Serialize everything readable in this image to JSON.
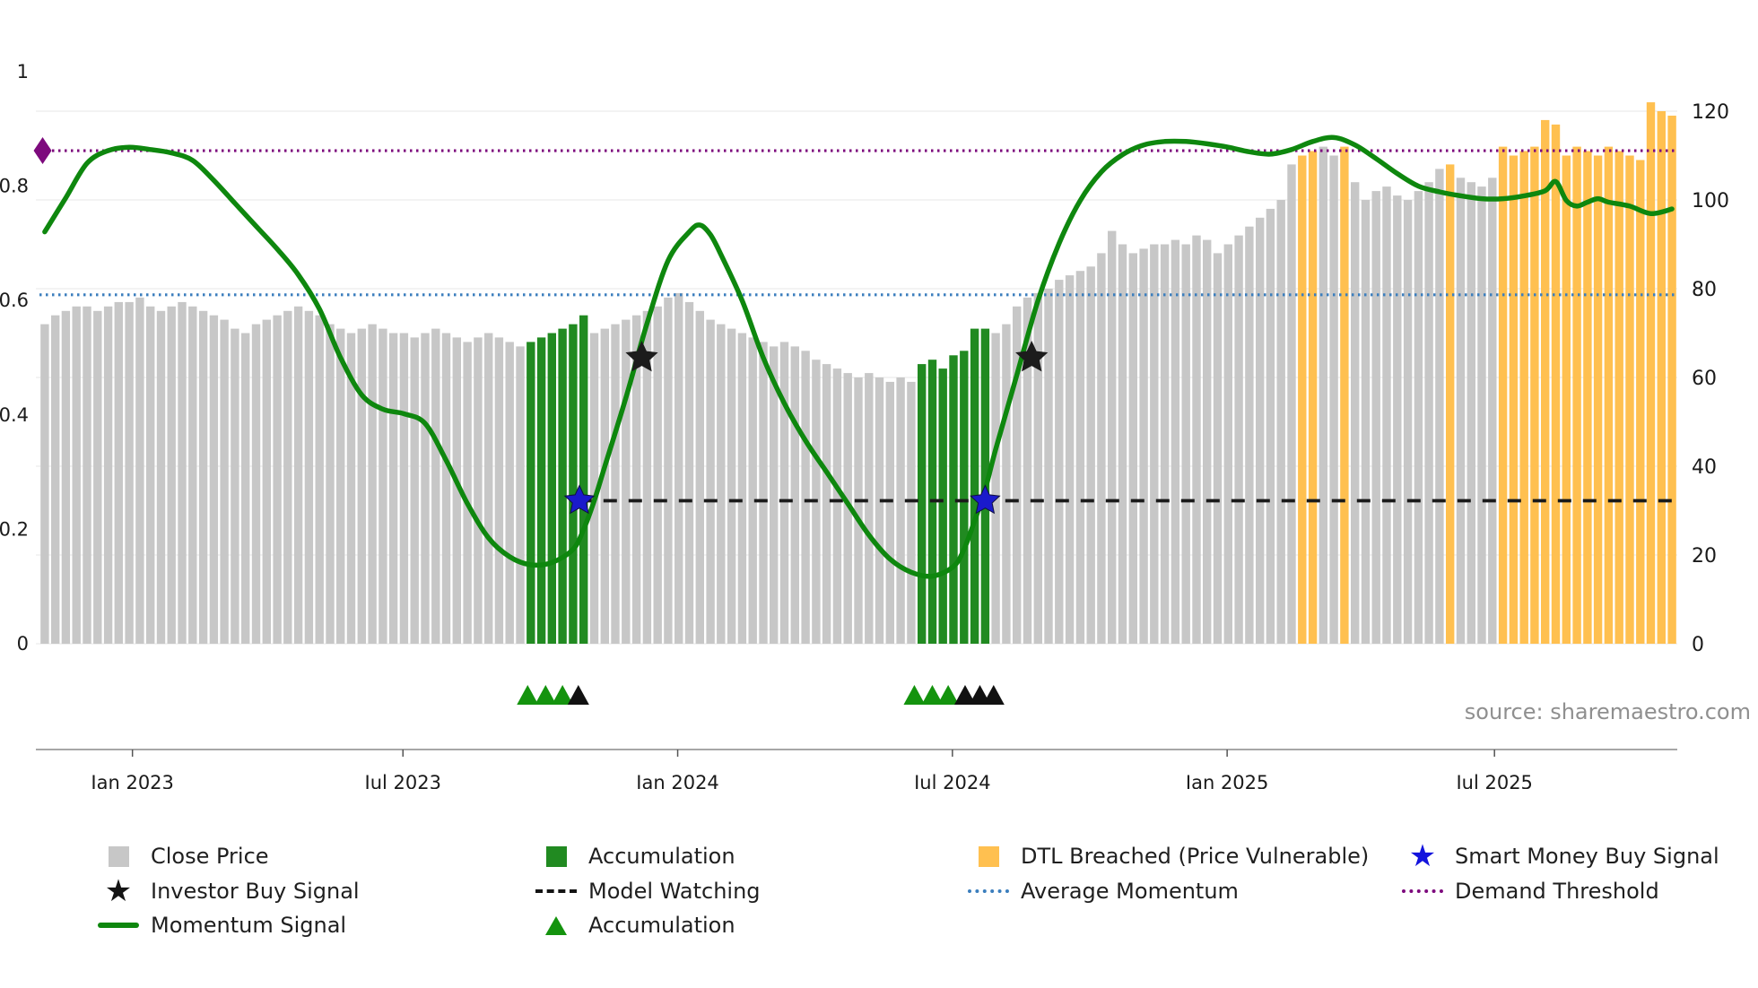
{
  "chart": {
    "source": "source: sharemaestro.com"
  },
  "chart_data": {
    "type": "bar",
    "description": "Weekly close price bars (right axis) with momentum signal line (left axis 0-1), threshold lines and buy-signal markers",
    "n_bars": 155,
    "bar_values": [
      72,
      74,
      75,
      76,
      76,
      75,
      76,
      77,
      77,
      78,
      76,
      75,
      76,
      77,
      76,
      75,
      74,
      73,
      71,
      70,
      72,
      73,
      74,
      75,
      76,
      75,
      74,
      72,
      71,
      70,
      71,
      72,
      71,
      70,
      70,
      69,
      70,
      71,
      70,
      69,
      68,
      69,
      70,
      69,
      68,
      67,
      68,
      69,
      70,
      71,
      72,
      74,
      70,
      71,
      72,
      73,
      74,
      75,
      76,
      78,
      79,
      77,
      75,
      73,
      72,
      71,
      70,
      69,
      68,
      67,
      68,
      67,
      66,
      64,
      63,
      62,
      61,
      60,
      61,
      60,
      59,
      60,
      59,
      63,
      64,
      62,
      65,
      66,
      71,
      71,
      70,
      72,
      76,
      78,
      79,
      80,
      82,
      83,
      84,
      85,
      88,
      93,
      90,
      88,
      89,
      90,
      90,
      91,
      90,
      92,
      91,
      88,
      90,
      92,
      94,
      96,
      98,
      100,
      108,
      110,
      111,
      112,
      110,
      112,
      104,
      100,
      102,
      103,
      101,
      100,
      102,
      104,
      107,
      108,
      105,
      104,
      103,
      105,
      112,
      110,
      111,
      112,
      118,
      117,
      110,
      112,
      111,
      110,
      112,
      111,
      110,
      109,
      122,
      120,
      119
    ],
    "bar_segments": [
      {
        "start": 0,
        "end": 45,
        "series": "close_price"
      },
      {
        "start": 46,
        "end": 51,
        "series": "accumulation"
      },
      {
        "start": 52,
        "end": 82,
        "series": "close_price"
      },
      {
        "start": 83,
        "end": 89,
        "series": "accumulation"
      },
      {
        "start": 90,
        "end": 118,
        "series": "close_price"
      },
      {
        "start": 119,
        "end": 120,
        "series": "dtl_breached"
      },
      {
        "start": 121,
        "end": 122,
        "series": "close_price"
      },
      {
        "start": 123,
        "end": 123,
        "series": "dtl_breached"
      },
      {
        "start": 124,
        "end": 132,
        "series": "close_price"
      },
      {
        "start": 133,
        "end": 133,
        "series": "dtl_breached"
      },
      {
        "start": 134,
        "end": 137,
        "series": "close_price"
      },
      {
        "start": 138,
        "end": 154,
        "series": "dtl_breached"
      }
    ],
    "series_colors": {
      "close_price": "#c7c7c7",
      "accumulation": "#218a21",
      "dtl_breached": "#ffc050"
    },
    "momentum_color": "#0e870e",
    "momentum_points": [
      [
        0,
        0.72
      ],
      [
        2,
        0.78
      ],
      [
        4,
        0.84
      ],
      [
        6,
        0.862
      ],
      [
        8,
        0.868
      ],
      [
        10,
        0.864
      ],
      [
        12,
        0.858
      ],
      [
        14,
        0.845
      ],
      [
        16,
        0.81
      ],
      [
        18,
        0.77
      ],
      [
        20,
        0.73
      ],
      [
        22,
        0.69
      ],
      [
        24,
        0.645
      ],
      [
        26,
        0.585
      ],
      [
        28,
        0.5
      ],
      [
        30,
        0.435
      ],
      [
        32,
        0.41
      ],
      [
        34,
        0.402
      ],
      [
        36,
        0.385
      ],
      [
        38,
        0.32
      ],
      [
        40,
        0.245
      ],
      [
        42,
        0.185
      ],
      [
        44,
        0.152
      ],
      [
        46,
        0.138
      ],
      [
        48,
        0.142
      ],
      [
        50,
        0.165
      ],
      [
        51,
        0.2
      ],
      [
        52,
        0.25
      ],
      [
        53,
        0.31
      ],
      [
        55,
        0.43
      ],
      [
        57,
        0.56
      ],
      [
        59,
        0.67
      ],
      [
        61,
        0.72
      ],
      [
        62,
        0.732
      ],
      [
        63,
        0.715
      ],
      [
        64,
        0.68
      ],
      [
        66,
        0.6
      ],
      [
        68,
        0.5
      ],
      [
        70,
        0.42
      ],
      [
        72,
        0.355
      ],
      [
        74,
        0.3
      ],
      [
        76,
        0.245
      ],
      [
        78,
        0.19
      ],
      [
        80,
        0.148
      ],
      [
        82,
        0.125
      ],
      [
        84,
        0.118
      ],
      [
        86,
        0.135
      ],
      [
        87,
        0.165
      ],
      [
        88,
        0.215
      ],
      [
        89,
        0.27
      ],
      [
        90,
        0.34
      ],
      [
        92,
        0.47
      ],
      [
        94,
        0.6
      ],
      [
        96,
        0.7
      ],
      [
        98,
        0.775
      ],
      [
        100,
        0.825
      ],
      [
        102,
        0.855
      ],
      [
        104,
        0.872
      ],
      [
        106,
        0.878
      ],
      [
        108,
        0.878
      ],
      [
        110,
        0.874
      ],
      [
        112,
        0.868
      ],
      [
        114,
        0.86
      ],
      [
        116,
        0.856
      ],
      [
        118,
        0.864
      ],
      [
        120,
        0.878
      ],
      [
        122,
        0.885
      ],
      [
        124,
        0.872
      ],
      [
        126,
        0.848
      ],
      [
        128,
        0.822
      ],
      [
        130,
        0.8
      ],
      [
        132,
        0.79
      ],
      [
        134,
        0.783
      ],
      [
        136,
        0.778
      ],
      [
        138,
        0.778
      ],
      [
        140,
        0.783
      ],
      [
        142,
        0.792
      ],
      [
        143,
        0.808
      ],
      [
        144,
        0.775
      ],
      [
        145,
        0.765
      ],
      [
        146,
        0.772
      ],
      [
        147,
        0.778
      ],
      [
        148,
        0.772
      ],
      [
        150,
        0.765
      ],
      [
        152,
        0.752
      ],
      [
        154,
        0.76
      ]
    ],
    "hlines": [
      {
        "name": "Demand Threshold",
        "value": 0.862,
        "color": "#7d0a7d",
        "style": "dotted",
        "start_idx": -0.5
      },
      {
        "name": "Average Momentum",
        "value": 0.61,
        "color": "#3b7ebd",
        "style": "dotted",
        "start_idx": -0.5
      },
      {
        "name": "Model Watching",
        "value": 0.25,
        "color": "#1a1a1a",
        "style": "dashed",
        "start_idx": 50.5
      }
    ],
    "markers": {
      "investor_buy_signals": [
        {
          "idx": 56.5,
          "value": 0.5
        },
        {
          "idx": 93.4,
          "value": 0.5
        }
      ],
      "smart_money_buy_signals": [
        {
          "idx": 50.6,
          "value": 0.25
        },
        {
          "idx": 89.0,
          "value": 0.25
        }
      ],
      "demand_threshold_start": {
        "idx": -0.2,
        "value": 0.862
      },
      "accumulation_triangles_idx": [
        45.7,
        47.4,
        49.0,
        82.3,
        84.0,
        85.5
      ],
      "investor_triangles_idx": [
        50.5,
        87.1,
        88.5,
        89.8
      ]
    },
    "axes": {
      "left_ticks": [
        0,
        0.2,
        0.4,
        0.6,
        0.8,
        1
      ],
      "left_tick_labels": [
        "0",
        "0.2",
        "0.4",
        "0.6",
        "0.8",
        "1"
      ],
      "right_ticks": [
        0,
        20,
        40,
        60,
        80,
        100,
        120
      ],
      "x_ticks": [
        {
          "idx": 8.3,
          "label": "Jan 2023"
        },
        {
          "idx": 33.9,
          "label": "Jul 2023"
        },
        {
          "idx": 59.9,
          "label": "Jan 2024"
        },
        {
          "idx": 85.9,
          "label": "Jul 2024"
        },
        {
          "idx": 111.9,
          "label": "Jan 2025"
        },
        {
          "idx": 137.2,
          "label": "Jul 2025"
        }
      ]
    },
    "marker_colors": {
      "investor_star": "#1c1c1c",
      "smart_money_star": "#1a1acc",
      "demand_diamond": "#7d0a7d",
      "accumulation_triangle": "#14930e",
      "investor_triangle": "#111111"
    }
  },
  "legend": {
    "items": [
      {
        "label": "Close Price",
        "marker": "gray-square"
      },
      {
        "label": "Accumulation",
        "marker": "green-square"
      },
      {
        "label": "DTL Breached (Price Vulnerable)",
        "marker": "orange-square"
      },
      {
        "label": "Smart Money Buy Signal",
        "marker": "blue-star"
      },
      {
        "label": "Investor Buy Signal",
        "marker": "black-star"
      },
      {
        "label": "Model Watching",
        "marker": "black-dashed-line"
      },
      {
        "label": "Average Momentum",
        "marker": "blue-dotted-line"
      },
      {
        "label": "Demand Threshold",
        "marker": "purple-dotted-line"
      },
      {
        "label": "Momentum Signal",
        "marker": "green-line"
      },
      {
        "label": "Accumulation",
        "marker": "green-triangle"
      }
    ]
  }
}
